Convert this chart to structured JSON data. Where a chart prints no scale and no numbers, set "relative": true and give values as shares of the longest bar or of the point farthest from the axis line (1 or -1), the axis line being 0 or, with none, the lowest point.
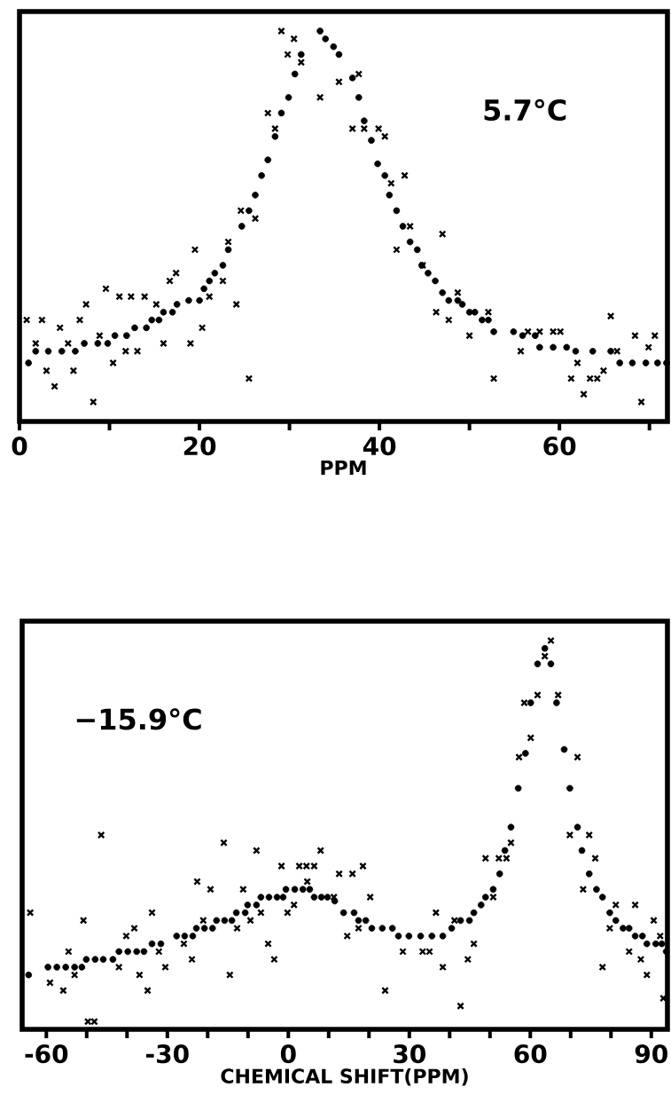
{
  "chart_data": [
    {
      "type": "scatter",
      "relative": true,
      "xlabel": "PPM",
      "annotations": [
        "5.7°C"
      ],
      "xlim": [
        0,
        72
      ],
      "xticks": [
        0,
        {
          "value": 10,
          "label": null
        },
        20,
        {
          "value": 30,
          "label": null
        },
        40,
        {
          "value": 50,
          "label": null
        },
        60,
        {
          "value": 70,
          "label": null
        }
      ],
      "series": [
        {
          "color": "#000000",
          "marker": "circle",
          "x": [
            1.0,
            1.8,
            3.2,
            4.7,
            6.2,
            7.2,
            8.7,
            9.8,
            10.6,
            11.9,
            12.8,
            14.1,
            14.7,
            15.5,
            16.0,
            17.0,
            17.5,
            18.8,
            20.0,
            20.5,
            21.1,
            21.7,
            22.6,
            23.2,
            24.7,
            25.5,
            26.2,
            26.9,
            27.6,
            28.4,
            29.1,
            29.9,
            30.6,
            31.3,
            33.4,
            34.0,
            34.9,
            35.5,
            37.0,
            37.7,
            38.3,
            39.1,
            39.8,
            40.6,
            41.1,
            41.9,
            42.6,
            43.4,
            44.2,
            44.7,
            45.4,
            46.2,
            47.0,
            47.7,
            48.7,
            49.2,
            50.0,
            50.6,
            51.4,
            52.1,
            52.7,
            54.9,
            55.9,
            57.3,
            57.8,
            59.3,
            60.8,
            61.8,
            63.7,
            65.7,
            66.7,
            68.1,
            69.6,
            70.9,
            71.9
          ],
          "values": [
            0.15,
            0.18,
            0.18,
            0.18,
            0.18,
            0.2,
            0.2,
            0.2,
            0.22,
            0.22,
            0.24,
            0.24,
            0.26,
            0.26,
            0.28,
            0.28,
            0.3,
            0.31,
            0.31,
            0.34,
            0.36,
            0.38,
            0.4,
            0.44,
            0.5,
            0.54,
            0.58,
            0.63,
            0.67,
            0.73,
            0.79,
            0.83,
            0.89,
            0.94,
            1.0,
            0.98,
            0.96,
            0.94,
            0.88,
            0.83,
            0.77,
            0.72,
            0.66,
            0.63,
            0.58,
            0.54,
            0.5,
            0.46,
            0.44,
            0.4,
            0.38,
            0.36,
            0.33,
            0.31,
            0.31,
            0.3,
            0.28,
            0.28,
            0.26,
            0.26,
            0.23,
            0.23,
            0.22,
            0.22,
            0.19,
            0.19,
            0.19,
            0.18,
            0.18,
            0.18,
            0.15,
            0.15,
            0.15,
            0.15,
            0.15
          ]
        },
        {
          "color": "#000000",
          "marker": "cross",
          "x": [
            0.8,
            1.8,
            2.5,
            3.0,
            3.9,
            4.5,
            5.4,
            6.0,
            6.7,
            7.4,
            8.2,
            8.9,
            9.6,
            10.4,
            11.1,
            11.8,
            12.4,
            13.1,
            13.9,
            15.2,
            16.0,
            16.7,
            17.4,
            19.0,
            19.5,
            20.3,
            21.1,
            22.6,
            23.2,
            24.1,
            24.6,
            25.5,
            26.2,
            27.6,
            28.4,
            29.1,
            29.8,
            30.5,
            31.3,
            33.4,
            35.5,
            37.0,
            37.7,
            38.3,
            39.9,
            40.6,
            41.3,
            41.9,
            42.8,
            43.4,
            44.8,
            46.3,
            47.0,
            47.7,
            48.7,
            50.0,
            52.1,
            52.7,
            55.7,
            56.5,
            57.8,
            59.3,
            60.1,
            61.3,
            62.0,
            62.7,
            63.4,
            64.2,
            64.9,
            65.7,
            66.4,
            68.4,
            69.1,
            69.9,
            70.6
          ],
          "values": [
            0.26,
            0.2,
            0.26,
            0.13,
            0.09,
            0.24,
            0.2,
            0.13,
            0.26,
            0.3,
            0.05,
            0.22,
            0.34,
            0.15,
            0.32,
            0.18,
            0.32,
            0.18,
            0.32,
            0.3,
            0.2,
            0.36,
            0.38,
            0.2,
            0.44,
            0.24,
            0.32,
            0.36,
            0.46,
            0.3,
            0.54,
            0.11,
            0.52,
            0.79,
            0.75,
            1.0,
            0.94,
            0.98,
            0.92,
            0.83,
            0.87,
            0.75,
            0.89,
            0.75,
            0.75,
            0.73,
            0.61,
            0.44,
            0.63,
            0.5,
            0.4,
            0.28,
            0.48,
            0.26,
            0.33,
            0.22,
            0.28,
            0.11,
            0.18,
            0.23,
            0.23,
            0.23,
            0.23,
            0.11,
            0.15,
            0.07,
            0.11,
            0.11,
            0.13,
            0.27,
            0.18,
            0.22,
            0.05,
            0.19,
            0.22
          ]
        }
      ]
    },
    {
      "type": "scatter",
      "relative": true,
      "xlabel": "CHEMICAL SHIFT(PPM)",
      "annotations": [
        "−15.9°C"
      ],
      "xlim": [
        -66,
        94
      ],
      "xticks": [
        -60,
        {
          "value": -50,
          "label": null
        },
        {
          "value": -40,
          "label": null
        },
        -30,
        {
          "value": -20,
          "label": null
        },
        {
          "value": -10,
          "label": null
        },
        0,
        {
          "value": 10,
          "label": null
        },
        {
          "value": 20,
          "label": null
        },
        30,
        {
          "value": 40,
          "label": null
        },
        {
          "value": 50,
          "label": null
        },
        60,
        {
          "value": 70,
          "label": null
        },
        {
          "value": 80,
          "label": null
        },
        90
      ],
      "series": [
        {
          "color": "#000000",
          "marker": "circle",
          "x": [
            -64.4,
            -59.6,
            -57.4,
            -55.2,
            -53.0,
            -51.2,
            -50.1,
            -47.9,
            -45.9,
            -43.5,
            -42.0,
            -39.8,
            -37.6,
            -35.8,
            -33.8,
            -31.6,
            -27.7,
            -25.7,
            -23.7,
            -22.8,
            -20.8,
            -18.8,
            -17.8,
            -15.8,
            -14.0,
            -12.9,
            -10.7,
            -10.1,
            -7.9,
            -6.8,
            -4.8,
            -2.8,
            -1.3,
            -0.6,
            1.6,
            3.6,
            5.3,
            6.4,
            8.2,
            9.7,
            11.5,
            13.7,
            16.3,
            17.4,
            19.2,
            20.7,
            23.3,
            25.8,
            27.3,
            29.9,
            32.8,
            35.6,
            38.3,
            40.5,
            42.7,
            44.9,
            46.0,
            47.8,
            48.9,
            50.8,
            52.4,
            53.7,
            55.2,
            57.0,
            58.8,
            60.1,
            61.8,
            63.6,
            65.1,
            66.5,
            68.4,
            69.8,
            71.7,
            72.8,
            74.6,
            76.4,
            77.9,
            79.7,
            81.2,
            83.0,
            84.5,
            86.0,
            87.8,
            88.9,
            91.1,
            92.6,
            93.7
          ],
          "values": [
            0.14,
            0.16,
            0.16,
            0.16,
            0.16,
            0.16,
            0.18,
            0.18,
            0.18,
            0.18,
            0.2,
            0.2,
            0.2,
            0.2,
            0.22,
            0.22,
            0.24,
            0.24,
            0.24,
            0.26,
            0.26,
            0.26,
            0.28,
            0.28,
            0.28,
            0.3,
            0.3,
            0.32,
            0.32,
            0.34,
            0.34,
            0.34,
            0.34,
            0.36,
            0.36,
            0.36,
            0.36,
            0.34,
            0.34,
            0.34,
            0.33,
            0.3,
            0.3,
            0.28,
            0.28,
            0.26,
            0.26,
            0.26,
            0.24,
            0.24,
            0.24,
            0.24,
            0.24,
            0.26,
            0.28,
            0.28,
            0.3,
            0.32,
            0.34,
            0.36,
            0.4,
            0.46,
            0.52,
            0.62,
            0.71,
            0.84,
            0.94,
            0.98,
            0.94,
            0.84,
            0.72,
            0.62,
            0.52,
            0.46,
            0.4,
            0.36,
            0.34,
            0.3,
            0.28,
            0.26,
            0.26,
            0.24,
            0.24,
            0.22,
            0.22,
            0.22,
            0.2
          ]
        },
        {
          "color": "#000000",
          "marker": "cross",
          "x": [
            -64.0,
            -59.1,
            -55.8,
            -54.5,
            -53.0,
            -50.8,
            -49.7,
            -48.1,
            -46.4,
            -42.0,
            -40.2,
            -38.2,
            -36.9,
            -34.9,
            -33.8,
            -32.1,
            -30.5,
            -25.9,
            -23.9,
            -22.6,
            -21.1,
            -19.3,
            -16.0,
            -14.5,
            -12.7,
            -11.2,
            -9.4,
            -7.9,
            -6.8,
            -5.0,
            -3.5,
            -1.7,
            -0.2,
            1.4,
            2.7,
            4.5,
            4.7,
            6.4,
            8.0,
            11.3,
            12.6,
            14.6,
            15.9,
            17.4,
            18.5,
            20.3,
            24.0,
            28.4,
            33.3,
            35.0,
            36.6,
            38.3,
            41.2,
            42.7,
            44.5,
            46.0,
            48.9,
            50.8,
            52.2,
            54.1,
            55.2,
            57.2,
            58.5,
            60.1,
            61.8,
            63.6,
            65.1,
            66.9,
            69.8,
            71.7,
            73.1,
            74.6,
            76.1,
            77.9,
            79.7,
            81.2,
            84.5,
            86.0,
            87.4,
            88.9,
            90.6,
            92.2,
            93.0
          ],
          "values": [
            0.3,
            0.12,
            0.1,
            0.2,
            0.14,
            0.28,
            0.02,
            0.02,
            0.5,
            0.16,
            0.24,
            0.26,
            0.14,
            0.1,
            0.3,
            0.2,
            0.16,
            0.22,
            0.18,
            0.38,
            0.28,
            0.36,
            0.48,
            0.14,
            0.26,
            0.36,
            0.28,
            0.46,
            0.3,
            0.22,
            0.18,
            0.42,
            0.3,
            0.32,
            0.42,
            0.42,
            0.38,
            0.42,
            0.46,
            0.34,
            0.4,
            0.24,
            0.4,
            0.26,
            0.42,
            0.34,
            0.1,
            0.2,
            0.2,
            0.2,
            0.3,
            0.16,
            0.28,
            0.06,
            0.18,
            0.22,
            0.44,
            0.34,
            0.44,
            0.44,
            0.48,
            0.7,
            0.84,
            0.75,
            0.86,
            0.96,
            1.0,
            0.86,
            0.5,
            0.7,
            0.36,
            0.5,
            0.44,
            0.16,
            0.26,
            0.32,
            0.2,
            0.32,
            0.18,
            0.14,
            0.28,
            0.24,
            0.08
          ]
        }
      ]
    }
  ]
}
